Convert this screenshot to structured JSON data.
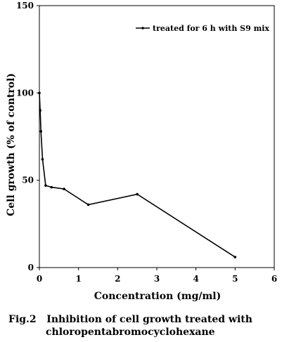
{
  "chart_data": {
    "type": "line",
    "title": "",
    "xlabel": "Concentration (mg/ml)",
    "ylabel": "Cell growth (% of control)",
    "xlim": [
      0,
      6
    ],
    "ylim": [
      0,
      150
    ],
    "x_ticks": [
      "0",
      "1",
      "2",
      "3",
      "4",
      "5",
      "6"
    ],
    "y_ticks": [
      "0",
      "50",
      "100",
      "150"
    ],
    "grid": false,
    "legend_position": "top-right",
    "series": [
      {
        "name": "treated for 6 h with S9 mix",
        "color": "#000000",
        "points": [
          {
            "x": 0.0,
            "y": 100
          },
          {
            "x": 0.02,
            "y": 90
          },
          {
            "x": 0.04,
            "y": 78
          },
          {
            "x": 0.08,
            "y": 62
          },
          {
            "x": 0.16,
            "y": 47
          },
          {
            "x": 0.31,
            "y": 46
          },
          {
            "x": 0.63,
            "y": 45
          },
          {
            "x": 1.25,
            "y": 36
          },
          {
            "x": 2.5,
            "y": 42
          },
          {
            "x": 5.0,
            "y": 6
          }
        ]
      }
    ]
  },
  "caption": {
    "label": "Fig.2",
    "line1": "Inhibition of cell growth treated with",
    "line2": "chloropentabromocyclohexane"
  }
}
